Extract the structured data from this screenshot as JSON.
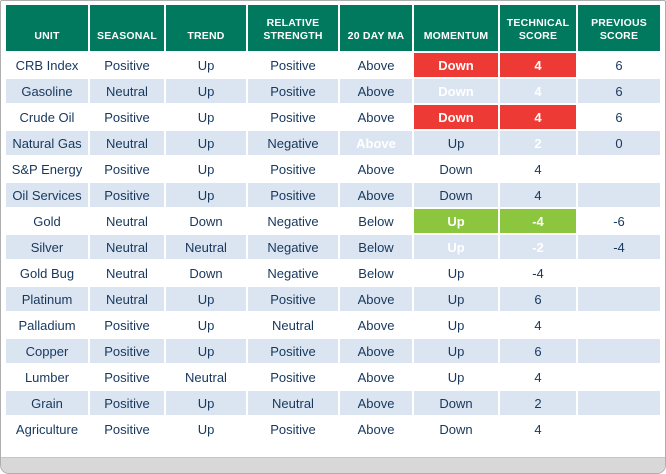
{
  "colors": {
    "header-bg": "#00795F",
    "stripe-bg": "#DBE5F1",
    "red": "#EE3A34",
    "green": "#8CC63F",
    "text": "#17375D",
    "bottom-bar": "#D8D8D8"
  },
  "chart_data": {
    "type": "table",
    "headers": [
      "UNIT",
      "SEASONAL",
      "TREND",
      "RELATIVE STRENGTH",
      "20 DAY MA",
      "MOMENTUM",
      "TECHNICAL SCORE",
      "PREVIOUS SCORE"
    ],
    "col_keys": [
      "unit",
      "seasonal",
      "trend",
      "relative-strength",
      "20-day-ma",
      "momentum",
      "technical-score",
      "previous-score"
    ],
    "rows": [
      {
        "cells": [
          "CRB Index",
          "Positive",
          "Up",
          "Positive",
          "Above",
          "Down",
          "4",
          "6"
        ],
        "hl": {
          "5": "red",
          "6": "red"
        }
      },
      {
        "cells": [
          "Gasoline",
          "Neutral",
          "Up",
          "Positive",
          "Above",
          "Down",
          "4",
          "6"
        ],
        "hl": {
          "5": "red",
          "6": "red"
        }
      },
      {
        "cells": [
          "Crude Oil",
          "Positive",
          "Up",
          "Positive",
          "Above",
          "Down",
          "4",
          "6"
        ],
        "hl": {
          "5": "red",
          "6": "red"
        }
      },
      {
        "cells": [
          "Natural Gas",
          "Neutral",
          "Up",
          "Negative",
          "Above",
          "Up",
          "2",
          "0"
        ],
        "hl": {
          "4": "green",
          "6": "green"
        }
      },
      {
        "cells": [
          "S&P Energy",
          "Positive",
          "Up",
          "Positive",
          "Above",
          "Down",
          "4",
          ""
        ]
      },
      {
        "cells": [
          "Oil Services",
          "Positive",
          "Up",
          "Positive",
          "Above",
          "Down",
          "4",
          ""
        ]
      },
      {
        "cells": [
          "Gold",
          "Neutral",
          "Down",
          "Negative",
          "Below",
          "Up",
          "-4",
          "-6"
        ],
        "hl": {
          "5": "green",
          "6": "green"
        }
      },
      {
        "cells": [
          "Silver",
          "Neutral",
          "Neutral",
          "Negative",
          "Below",
          "Up",
          "-2",
          "-4"
        ],
        "hl": {
          "5": "green",
          "6": "green"
        }
      },
      {
        "cells": [
          "Gold Bug",
          "Neutral",
          "Down",
          "Negative",
          "Below",
          "Up",
          "-4",
          ""
        ]
      },
      {
        "cells": [
          "Platinum",
          "Neutral",
          "Up",
          "Positive",
          "Above",
          "Up",
          "6",
          ""
        ]
      },
      {
        "cells": [
          "Palladium",
          "Positive",
          "Up",
          "Neutral",
          "Above",
          "Up",
          "4",
          ""
        ]
      },
      {
        "cells": [
          "Copper",
          "Positive",
          "Up",
          "Positive",
          "Above",
          "Up",
          "6",
          ""
        ]
      },
      {
        "cells": [
          "Lumber",
          "Positive",
          "Neutral",
          "Positive",
          "Above",
          "Up",
          "4",
          ""
        ]
      },
      {
        "cells": [
          "Grain",
          "Positive",
          "Up",
          "Neutral",
          "Above",
          "Down",
          "2",
          ""
        ]
      },
      {
        "cells": [
          "Agriculture",
          "Positive",
          "Up",
          "Positive",
          "Above",
          "Down",
          "4",
          ""
        ]
      }
    ]
  }
}
